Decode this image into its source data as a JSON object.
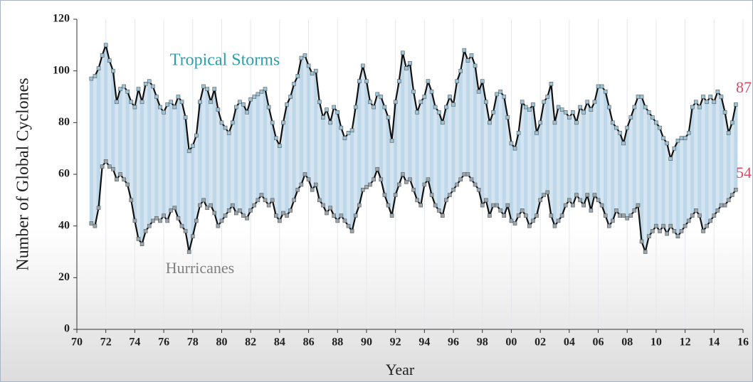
{
  "chart_data": {
    "type": "line",
    "x_label": "Year",
    "y_label": "Number of Global Cyclones",
    "end_label_color": "#d0506a",
    "grid": true,
    "x": [
      1971,
      1971.25,
      1971.5,
      1971.75,
      1972,
      1972.25,
      1972.5,
      1972.75,
      1973,
      1973.25,
      1973.5,
      1973.75,
      1974,
      1974.25,
      1974.5,
      1974.75,
      1975,
      1975.25,
      1975.5,
      1975.75,
      1976,
      1976.25,
      1976.5,
      1976.75,
      1977,
      1977.25,
      1977.5,
      1977.75,
      1978,
      1978.25,
      1978.5,
      1978.75,
      1979,
      1979.25,
      1979.5,
      1979.75,
      1980,
      1980.25,
      1980.5,
      1980.75,
      1981,
      1981.25,
      1981.5,
      1981.75,
      1982,
      1982.25,
      1982.5,
      1982.75,
      1983,
      1983.25,
      1983.5,
      1983.75,
      1984,
      1984.25,
      1984.5,
      1984.75,
      1985,
      1985.25,
      1985.5,
      1985.75,
      1986,
      1986.25,
      1986.5,
      1986.75,
      1987,
      1987.25,
      1987.5,
      1987.75,
      1988,
      1988.25,
      1988.5,
      1988.75,
      1989,
      1989.25,
      1989.5,
      1989.75,
      1990,
      1990.25,
      1990.5,
      1990.75,
      1991,
      1991.25,
      1991.5,
      1991.75,
      1992,
      1992.25,
      1992.5,
      1992.75,
      1993,
      1993.25,
      1993.5,
      1993.75,
      1994,
      1994.25,
      1994.5,
      1994.75,
      1995,
      1995.25,
      1995.5,
      1995.75,
      1996,
      1996.25,
      1996.5,
      1996.75,
      1997,
      1997.25,
      1997.5,
      1997.75,
      1998,
      1998.25,
      1998.5,
      1998.75,
      1999,
      1999.25,
      1999.5,
      1999.75,
      2000,
      2000.25,
      2000.5,
      2000.75,
      2001,
      2001.25,
      2001.5,
      2001.75,
      2002,
      2002.25,
      2002.5,
      2002.75,
      2003,
      2003.25,
      2003.5,
      2003.75,
      2004,
      2004.25,
      2004.5,
      2004.75,
      2005,
      2005.25,
      2005.5,
      2005.75,
      2006,
      2006.25,
      2006.5,
      2006.75,
      2007,
      2007.25,
      2007.5,
      2007.75,
      2008,
      2008.25,
      2008.5,
      2008.75,
      2009,
      2009.25,
      2009.5,
      2009.75,
      2010,
      2010.25,
      2010.5,
      2010.75,
      2011,
      2011.25,
      2011.5,
      2011.75,
      2012,
      2012.25,
      2012.5,
      2012.75,
      2013,
      2013.25,
      2013.5,
      2013.75,
      2014,
      2014.25,
      2014.5,
      2014.75,
      2015,
      2015.25,
      2015.5
    ],
    "series": [
      {
        "name": "Tropical Storms",
        "color": "#111111",
        "marker_color": "#9cc4d6",
        "label_color": "#2aa0ad",
        "values": [
          97,
          98,
          101,
          106,
          110,
          104,
          100,
          88,
          93,
          94,
          92,
          88,
          86,
          93,
          88,
          95,
          96,
          94,
          90,
          86,
          84,
          87,
          88,
          86,
          90,
          88,
          82,
          69,
          71,
          75,
          88,
          94,
          93,
          88,
          93,
          85,
          80,
          78,
          76,
          80,
          86,
          88,
          87,
          84,
          89,
          90,
          91,
          92,
          93,
          86,
          80,
          74,
          71,
          80,
          87,
          90,
          95,
          98,
          105,
          106,
          102,
          99,
          100,
          88,
          82,
          85,
          80,
          86,
          84,
          78,
          74,
          76,
          77,
          86,
          96,
          102,
          96,
          88,
          86,
          91,
          90,
          86,
          82,
          73,
          88,
          96,
          107,
          101,
          103,
          92,
          84,
          88,
          90,
          96,
          92,
          86,
          84,
          80,
          86,
          90,
          87,
          96,
          100,
          108,
          104,
          106,
          102,
          92,
          96,
          88,
          80,
          84,
          91,
          92,
          90,
          82,
          72,
          70,
          76,
          88,
          86,
          85,
          87,
          76,
          80,
          88,
          90,
          95,
          80,
          86,
          85,
          84,
          82,
          84,
          80,
          86,
          84,
          88,
          85,
          88,
          94,
          94,
          92,
          86,
          80,
          78,
          76,
          72,
          78,
          82,
          86,
          90,
          90,
          86,
          84,
          82,
          80,
          78,
          74,
          72,
          66,
          70,
          73,
          74,
          74,
          76,
          86,
          88,
          86,
          90,
          88,
          90,
          88,
          92,
          90,
          84,
          76,
          80,
          87
        ]
      },
      {
        "name": "Hurricanes",
        "color": "#111111",
        "marker_color": "#9aa6ad",
        "label_color": "#808080",
        "values": [
          41,
          40,
          47,
          63,
          65,
          63,
          62,
          58,
          60,
          58,
          56,
          50,
          42,
          35,
          33,
          38,
          40,
          42,
          43,
          42,
          44,
          42,
          46,
          47,
          43,
          40,
          38,
          30,
          36,
          42,
          48,
          50,
          47,
          48,
          45,
          40,
          42,
          44,
          46,
          48,
          45,
          46,
          44,
          43,
          46,
          48,
          50,
          52,
          50,
          48,
          50,
          44,
          42,
          45,
          44,
          46,
          50,
          54,
          56,
          60,
          58,
          54,
          56,
          50,
          48,
          45,
          47,
          44,
          42,
          44,
          42,
          40,
          38,
          44,
          48,
          54,
          55,
          56,
          58,
          62,
          58,
          52,
          48,
          44,
          52,
          56,
          60,
          57,
          58,
          54,
          50,
          48,
          56,
          58,
          52,
          48,
          46,
          44,
          50,
          52,
          54,
          56,
          58,
          60,
          60,
          58,
          56,
          54,
          48,
          50,
          44,
          48,
          48,
          46,
          44,
          48,
          42,
          41,
          44,
          46,
          44,
          40,
          42,
          44,
          50,
          52,
          53,
          44,
          40,
          42,
          44,
          48,
          50,
          48,
          52,
          50,
          48,
          52,
          46,
          52,
          50,
          48,
          44,
          40,
          42,
          46,
          44,
          44,
          43,
          44,
          46,
          48,
          34,
          30,
          36,
          38,
          40,
          38,
          40,
          37,
          40,
          38,
          36,
          38,
          40,
          42,
          44,
          46,
          44,
          38,
          40,
          42,
          44,
          46,
          48,
          48,
          50,
          52,
          54
        ]
      }
    ],
    "xlim": [
      1970,
      2016
    ],
    "xticks": [
      {
        "value": 1970,
        "label": "70"
      },
      {
        "value": 1972,
        "label": "72"
      },
      {
        "value": 1974,
        "label": "74"
      },
      {
        "value": 1976,
        "label": "76"
      },
      {
        "value": 1978,
        "label": "78"
      },
      {
        "value": 1980,
        "label": "80"
      },
      {
        "value": 1982,
        "label": "82"
      },
      {
        "value": 1984,
        "label": "84"
      },
      {
        "value": 1986,
        "label": "86"
      },
      {
        "value": 1988,
        "label": "88"
      },
      {
        "value": 1990,
        "label": "90"
      },
      {
        "value": 1992,
        "label": "92"
      },
      {
        "value": 1994,
        "label": "94"
      },
      {
        "value": 1996,
        "label": "96"
      },
      {
        "value": 1998,
        "label": "98"
      },
      {
        "value": 2000,
        "label": "00"
      },
      {
        "value": 2002,
        "label": "02"
      },
      {
        "value": 2004,
        "label": "04"
      },
      {
        "value": 2006,
        "label": "06"
      },
      {
        "value": 2008,
        "label": "08"
      },
      {
        "value": 2010,
        "label": "10"
      },
      {
        "value": 2012,
        "label": "12"
      },
      {
        "value": 2014,
        "label": "14"
      },
      {
        "value": 2016,
        "label": "16"
      }
    ],
    "ylim": [
      0,
      120
    ],
    "yticks": [
      0,
      20,
      40,
      60,
      80,
      100,
      120
    ]
  }
}
